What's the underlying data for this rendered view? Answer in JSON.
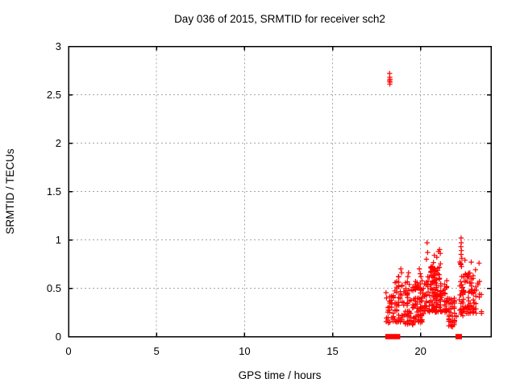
{
  "window": {
    "background": "#ffffff"
  },
  "chart_data": {
    "type": "scatter",
    "title": "Day 036 of 2015, SRMTID for receiver sch2",
    "xlabel": "GPS time / hours",
    "ylabel": "SRMTID / TECUs",
    "xlim": [
      0,
      24
    ],
    "ylim": [
      0,
      3
    ],
    "xticks": [
      0,
      5,
      10,
      15,
      20
    ],
    "yticks": [
      0,
      0.5,
      1,
      1.5,
      2,
      2.5,
      3
    ],
    "grid": true,
    "legend": "none",
    "marker": "plus-cross",
    "colors": {
      "points": "#ff0000",
      "grid": "#a6a6a6",
      "border": "#000000",
      "text": "#000000"
    },
    "outlier_cluster": [
      [
        18.24,
        2.72
      ],
      [
        18.25,
        2.68
      ],
      [
        18.26,
        2.66
      ],
      [
        18.24,
        2.645
      ],
      [
        18.26,
        2.63
      ],
      [
        18.25,
        2.61
      ]
    ],
    "peak_points": [
      [
        18.88,
        0.7
      ],
      [
        18.92,
        0.66
      ],
      [
        19.32,
        0.66
      ],
      [
        19.28,
        0.62
      ],
      [
        19.93,
        0.7
      ],
      [
        19.98,
        0.65
      ],
      [
        20.02,
        0.62
      ],
      [
        20.37,
        0.97
      ],
      [
        20.4,
        0.87
      ],
      [
        20.33,
        0.8
      ],
      [
        21.02,
        0.88
      ],
      [
        20.78,
        0.84
      ],
      [
        20.92,
        0.82
      ],
      [
        21.12,
        0.86
      ],
      [
        21.08,
        0.9
      ],
      [
        22.3,
        1.02
      ],
      [
        22.31,
        0.97
      ],
      [
        22.29,
        0.93
      ],
      [
        22.32,
        0.89
      ],
      [
        22.3,
        0.85
      ],
      [
        22.34,
        0.81
      ],
      [
        22.52,
        0.79
      ],
      [
        22.88,
        0.77
      ],
      [
        23.32,
        0.76
      ],
      [
        23.12,
        0.69
      ]
    ],
    "zero_line_points": [
      18.14,
      18.28,
      18.51,
      18.69,
      22.13,
      22.2
    ],
    "clusters": [
      {
        "t0": 18.05,
        "t1": 18.5,
        "ymin": 0.14,
        "ymax": 0.46,
        "n": 34,
        "p": 1.5,
        "q": 0.1
      },
      {
        "t0": 18.55,
        "t1": 19.05,
        "ymin": 0.15,
        "ymax": 0.62,
        "n": 52,
        "p": 1.7,
        "q": 0.1
      },
      {
        "t0": 19.15,
        "t1": 19.6,
        "ymin": 0.12,
        "ymax": 0.58,
        "n": 50,
        "p": 1.6,
        "q": 0.1
      },
      {
        "t0": 19.62,
        "t1": 20.12,
        "ymin": 0.15,
        "ymax": 0.58,
        "n": 68,
        "p": 1.5,
        "q": 0.09
      },
      {
        "t0": 20.15,
        "t1": 20.48,
        "ymin": 0.25,
        "ymax": 0.62,
        "n": 30,
        "p": 1.3,
        "q": 0.09
      },
      {
        "t0": 20.5,
        "t1": 21.2,
        "ymin": 0.25,
        "ymax": 0.78,
        "n": 105,
        "p": 1.4,
        "q": 0.08
      },
      {
        "t0": 21.2,
        "t1": 21.5,
        "ymin": 0.25,
        "ymax": 0.58,
        "n": 28,
        "p": 1.3,
        "q": 0.09
      },
      {
        "t0": 21.52,
        "t1": 22.02,
        "ymin": 0.1,
        "ymax": 0.42,
        "n": 46,
        "p": 1.2,
        "q": 0.1
      },
      {
        "t0": 22.22,
        "t1": 22.42,
        "ymin": 0.18,
        "ymax": 0.78,
        "n": 30,
        "p": 1.0,
        "q": 0.06
      },
      {
        "t0": 22.45,
        "t1": 23.05,
        "ymin": 0.24,
        "ymax": 0.66,
        "n": 62,
        "p": 1.4,
        "q": 0.09
      },
      {
        "t0": 23.05,
        "t1": 23.45,
        "ymin": 0.2,
        "ymax": 0.62,
        "n": 15,
        "p": 1.2,
        "q": 0.1
      }
    ],
    "seed": 2015036
  }
}
